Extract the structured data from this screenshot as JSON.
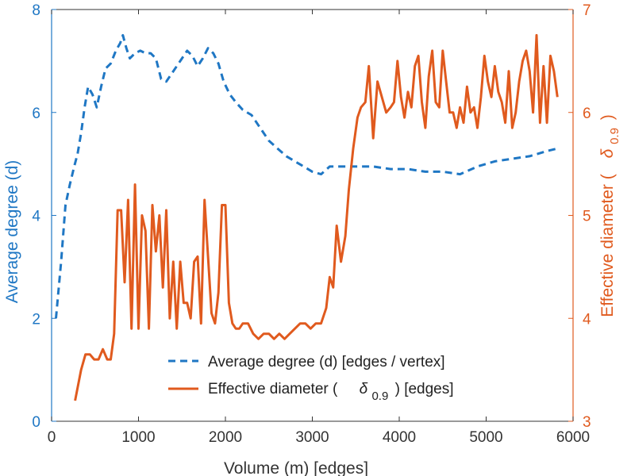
{
  "colors": {
    "left": "#1f77c4",
    "right": "#e05a1e",
    "axis": "#333333"
  },
  "chart_data": {
    "type": "line",
    "xlabel": "Volume (m) [edges]",
    "ylabel_left": "Average degree (d)",
    "ylabel_right": "Effective diameter (",
    "ylabel_right_symbol": "δ",
    "ylabel_right_sub": "0.9",
    "ylabel_right_close": ")",
    "xlim": [
      0,
      6000
    ],
    "ylim_left": [
      0,
      8
    ],
    "ylim_right": [
      3,
      7
    ],
    "xticks": [
      "0",
      "1000",
      "2000",
      "3000",
      "4000",
      "5000",
      "6000"
    ],
    "yticks_left": [
      "0",
      "2",
      "4",
      "6",
      "8"
    ],
    "yticks_right": [
      "3",
      "4",
      "5",
      "6",
      "7"
    ],
    "legend_position": "bottom-center",
    "series": [
      {
        "name": "Average degree (d) [edges / vertex]",
        "axis": "left",
        "style": "dashed",
        "x": [
          50,
          110,
          160,
          210,
          260,
          300,
          340,
          380,
          420,
          470,
          520,
          570,
          620,
          680,
          740,
          790,
          820,
          860,
          900,
          960,
          1020,
          1080,
          1140,
          1200,
          1260,
          1320,
          1380,
          1440,
          1500,
          1560,
          1620,
          1680,
          1740,
          1800,
          1860,
          1920,
          1980,
          2050,
          2120,
          2200,
          2300,
          2400,
          2500,
          2600,
          2700,
          2800,
          2900,
          3000,
          3100,
          3200,
          3300,
          3500,
          3700,
          3900,
          4100,
          4300,
          4500,
          4700,
          4900,
          5100,
          5300,
          5500,
          5700,
          5820
        ],
        "y": [
          2.0,
          3.1,
          4.2,
          4.6,
          4.95,
          5.2,
          5.6,
          6.1,
          6.5,
          6.35,
          6.1,
          6.5,
          6.85,
          6.95,
          7.2,
          7.35,
          7.5,
          7.25,
          7.05,
          7.15,
          7.2,
          7.15,
          7.15,
          7.05,
          6.65,
          6.6,
          6.75,
          6.9,
          7.05,
          7.2,
          7.1,
          6.9,
          7.05,
          7.25,
          7.15,
          6.95,
          6.6,
          6.35,
          6.2,
          6.05,
          5.95,
          5.7,
          5.45,
          5.3,
          5.15,
          5.05,
          4.95,
          4.85,
          4.8,
          4.95,
          4.95,
          4.95,
          4.95,
          4.9,
          4.9,
          4.85,
          4.85,
          4.8,
          4.95,
          5.05,
          5.1,
          5.15,
          5.25,
          5.3
        ]
      },
      {
        "name": "Effective diameter (δ0.9) [edges]",
        "legend_prefix": "Effective diameter (",
        "legend_symbol": "δ",
        "legend_sub": "0.9",
        "legend_suffix": ") [edges]",
        "axis": "right",
        "style": "solid",
        "x": [
          270,
          340,
          390,
          440,
          490,
          540,
          590,
          640,
          680,
          720,
          760,
          800,
          840,
          880,
          920,
          960,
          1000,
          1040,
          1080,
          1120,
          1160,
          1200,
          1240,
          1280,
          1320,
          1360,
          1400,
          1440,
          1480,
          1520,
          1560,
          1600,
          1640,
          1680,
          1720,
          1760,
          1800,
          1840,
          1880,
          1920,
          1960,
          2000,
          2040,
          2080,
          2120,
          2160,
          2200,
          2260,
          2320,
          2380,
          2440,
          2500,
          2560,
          2620,
          2680,
          2740,
          2800,
          2860,
          2920,
          2980,
          3040,
          3100,
          3160,
          3200,
          3240,
          3280,
          3330,
          3380,
          3420,
          3470,
          3520,
          3560,
          3610,
          3650,
          3700,
          3750,
          3800,
          3850,
          3900,
          3940,
          3980,
          4020,
          4060,
          4100,
          4140,
          4180,
          4220,
          4260,
          4300,
          4340,
          4380,
          4420,
          4460,
          4500,
          4540,
          4580,
          4620,
          4660,
          4700,
          4740,
          4780,
          4820,
          4860,
          4900,
          4940,
          4980,
          5020,
          5060,
          5100,
          5140,
          5180,
          5220,
          5260,
          5300,
          5340,
          5380,
          5420,
          5460,
          5500,
          5540,
          5580,
          5620,
          5660,
          5700,
          5740,
          5780,
          5820
        ],
        "y": [
          3.2,
          3.5,
          3.65,
          3.65,
          3.6,
          3.6,
          3.7,
          3.6,
          3.6,
          3.85,
          5.05,
          5.05,
          4.35,
          5.15,
          3.9,
          5.3,
          3.9,
          5.0,
          4.85,
          3.9,
          5.1,
          4.65,
          5.0,
          4.3,
          5.05,
          4.0,
          4.55,
          3.9,
          4.55,
          4.15,
          4.15,
          4.0,
          4.55,
          4.6,
          3.95,
          5.15,
          4.6,
          4.05,
          3.95,
          4.25,
          5.1,
          5.1,
          4.15,
          3.95,
          3.9,
          3.9,
          3.95,
          3.95,
          3.85,
          3.8,
          3.85,
          3.85,
          3.8,
          3.85,
          3.8,
          3.85,
          3.9,
          3.95,
          3.95,
          3.9,
          3.95,
          3.95,
          4.1,
          4.4,
          4.3,
          4.9,
          4.55,
          4.8,
          5.25,
          5.65,
          5.95,
          6.05,
          6.1,
          6.45,
          5.75,
          6.3,
          6.15,
          6.0,
          6.05,
          6.1,
          6.5,
          6.15,
          5.95,
          6.2,
          6.05,
          6.45,
          6.55,
          6.1,
          5.85,
          6.35,
          6.6,
          6.1,
          6.05,
          6.6,
          6.3,
          6.0,
          6.0,
          5.85,
          6.05,
          5.9,
          6.25,
          6.0,
          6.05,
          5.85,
          6.15,
          6.55,
          6.3,
          6.15,
          6.45,
          6.2,
          6.1,
          5.9,
          6.4,
          5.85,
          6.0,
          6.3,
          6.5,
          6.6,
          6.4,
          6.0,
          6.75,
          5.9,
          6.45,
          5.9,
          6.55,
          6.4,
          6.15
        ]
      }
    ]
  }
}
